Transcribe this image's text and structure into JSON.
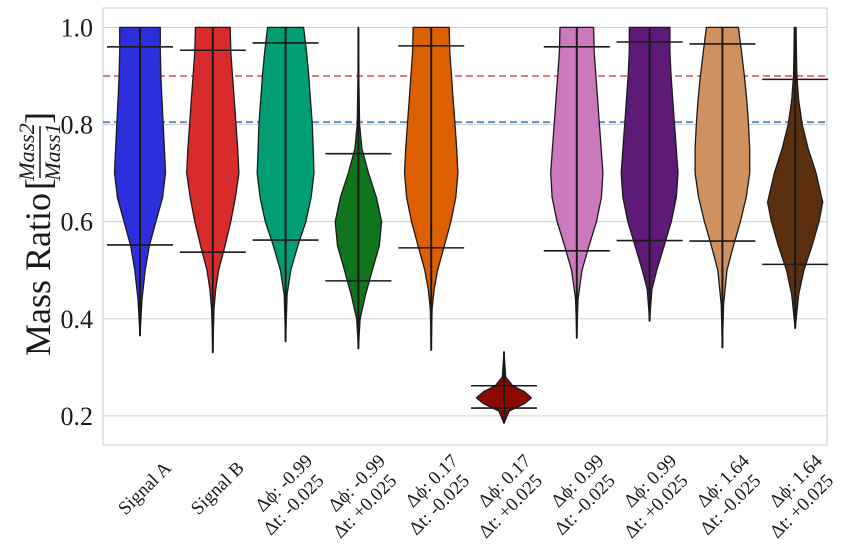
{
  "chart_data": {
    "type": "violin",
    "title": "",
    "xlabel": "",
    "ylabel": "Mass Ratio",
    "ylabel_fraction": {
      "numerator": "Mass2",
      "denominator": "Mass1"
    },
    "ylim": [
      0.14,
      1.04
    ],
    "yticks": [
      0.2,
      0.4,
      0.6,
      0.8,
      1.0
    ],
    "ytick_labels": [
      "0.2",
      "0.4",
      "0.6",
      "0.8",
      "1.0"
    ],
    "grid": true,
    "reference_lines": [
      {
        "value": 0.9,
        "color": "#e8787e",
        "style": "dashed"
      },
      {
        "value": 0.805,
        "color": "#5b8fd0",
        "style": "dashed"
      }
    ],
    "categories": [
      {
        "label1": "Signal A",
        "label2": ""
      },
      {
        "label1": "Signal B",
        "label2": ""
      },
      {
        "label1": "Δϕ: -0.99",
        "label2": "Δt: -0.025"
      },
      {
        "label1": "Δϕ: -0.99",
        "label2": "Δt: +0.025"
      },
      {
        "label1": "Δϕ: 0.17",
        "label2": "Δt: -0.025"
      },
      {
        "label1": "Δϕ: 0.17",
        "label2": "Δt: +0.025"
      },
      {
        "label1": "Δϕ: 0.99",
        "label2": "Δt: -0.025"
      },
      {
        "label1": "Δϕ: 0.99",
        "label2": "Δt: +0.025"
      },
      {
        "label1": "Δϕ: 1.64",
        "label2": "Δt: -0.025"
      },
      {
        "label1": "Δϕ: 1.64",
        "label2": "Δt: +0.025"
      }
    ],
    "series": [
      {
        "name": "Signal A",
        "color": "#2e2fdc",
        "min": 0.365,
        "max": 1.0,
        "p05": 0.552,
        "p95": 0.96,
        "profile": [
          [
            0.365,
            0.0
          ],
          [
            0.44,
            0.07
          ],
          [
            0.5,
            0.18
          ],
          [
            0.55,
            0.32
          ],
          [
            0.6,
            0.55
          ],
          [
            0.65,
            0.78
          ],
          [
            0.7,
            0.88
          ],
          [
            0.75,
            0.84
          ],
          [
            0.8,
            0.8
          ],
          [
            0.85,
            0.76
          ],
          [
            0.9,
            0.72
          ],
          [
            0.95,
            0.7
          ],
          [
            1.0,
            0.7
          ]
        ]
      },
      {
        "name": "Signal B",
        "color": "#d72b2c",
        "min": 0.33,
        "max": 1.0,
        "p05": 0.537,
        "p95": 0.953,
        "profile": [
          [
            0.33,
            0.0
          ],
          [
            0.42,
            0.04
          ],
          [
            0.46,
            0.1
          ],
          [
            0.5,
            0.2
          ],
          [
            0.55,
            0.42
          ],
          [
            0.6,
            0.62
          ],
          [
            0.65,
            0.78
          ],
          [
            0.7,
            0.9
          ],
          [
            0.75,
            0.86
          ],
          [
            0.8,
            0.8
          ],
          [
            0.85,
            0.74
          ],
          [
            0.9,
            0.68
          ],
          [
            0.95,
            0.62
          ],
          [
            1.0,
            0.6
          ]
        ]
      },
      {
        "name": "Δϕ: -0.99 Δt: -0.025",
        "color": "#029e73",
        "min": 0.353,
        "max": 1.0,
        "p05": 0.562,
        "p95": 0.968,
        "profile": [
          [
            0.353,
            0.0
          ],
          [
            0.45,
            0.05
          ],
          [
            0.5,
            0.18
          ],
          [
            0.55,
            0.42
          ],
          [
            0.6,
            0.7
          ],
          [
            0.65,
            0.88
          ],
          [
            0.7,
            0.98
          ],
          [
            0.75,
            0.95
          ],
          [
            0.8,
            0.92
          ],
          [
            0.85,
            0.86
          ],
          [
            0.9,
            0.8
          ],
          [
            0.95,
            0.72
          ],
          [
            1.0,
            0.62
          ]
        ]
      },
      {
        "name": "Δϕ: -0.99 Δt: +0.025",
        "color": "#10761e",
        "min": 0.338,
        "max": 1.0,
        "p05": 0.478,
        "p95": 0.74,
        "profile": [
          [
            0.338,
            0.0
          ],
          [
            0.4,
            0.06
          ],
          [
            0.45,
            0.25
          ],
          [
            0.5,
            0.48
          ],
          [
            0.55,
            0.72
          ],
          [
            0.6,
            0.8
          ],
          [
            0.65,
            0.62
          ],
          [
            0.7,
            0.35
          ],
          [
            0.75,
            0.12
          ],
          [
            0.8,
            0.04
          ],
          [
            0.9,
            0.015
          ],
          [
            1.0,
            0.0
          ]
        ]
      },
      {
        "name": "Δϕ: 0.17 Δt: -0.025",
        "color": "#de5f00",
        "min": 0.335,
        "max": 1.0,
        "p05": 0.546,
        "p95": 0.962,
        "profile": [
          [
            0.335,
            0.0
          ],
          [
            0.42,
            0.03
          ],
          [
            0.46,
            0.1
          ],
          [
            0.5,
            0.22
          ],
          [
            0.55,
            0.45
          ],
          [
            0.6,
            0.68
          ],
          [
            0.65,
            0.85
          ],
          [
            0.7,
            0.92
          ],
          [
            0.75,
            0.88
          ],
          [
            0.8,
            0.82
          ],
          [
            0.85,
            0.76
          ],
          [
            0.9,
            0.7
          ],
          [
            0.95,
            0.64
          ],
          [
            1.0,
            0.62
          ]
        ]
      },
      {
        "name": "Δϕ: 0.17 Δt: +0.025",
        "color": "#8c0a00",
        "min": 0.185,
        "max": 0.332,
        "p05": 0.216,
        "p95": 0.262,
        "profile": [
          [
            0.185,
            0.0
          ],
          [
            0.21,
            0.18
          ],
          [
            0.225,
            0.7
          ],
          [
            0.237,
            0.95
          ],
          [
            0.25,
            0.7
          ],
          [
            0.262,
            0.3
          ],
          [
            0.28,
            0.06
          ],
          [
            0.332,
            0.0
          ]
        ]
      },
      {
        "name": "Δϕ: 0.99 Δt: -0.025",
        "color": "#cc78bc",
        "min": 0.36,
        "max": 1.0,
        "p05": 0.54,
        "p95": 0.96,
        "profile": [
          [
            0.36,
            0.0
          ],
          [
            0.44,
            0.04
          ],
          [
            0.5,
            0.18
          ],
          [
            0.55,
            0.42
          ],
          [
            0.6,
            0.68
          ],
          [
            0.65,
            0.85
          ],
          [
            0.7,
            0.9
          ],
          [
            0.75,
            0.84
          ],
          [
            0.8,
            0.78
          ],
          [
            0.85,
            0.72
          ],
          [
            0.9,
            0.66
          ],
          [
            0.95,
            0.6
          ],
          [
            1.0,
            0.58
          ]
        ]
      },
      {
        "name": "Δϕ: 0.99 Δt: +0.025",
        "color": "#5d1a76",
        "min": 0.395,
        "max": 1.0,
        "p05": 0.561,
        "p95": 0.97,
        "profile": [
          [
            0.395,
            0.0
          ],
          [
            0.46,
            0.08
          ],
          [
            0.5,
            0.25
          ],
          [
            0.55,
            0.5
          ],
          [
            0.6,
            0.75
          ],
          [
            0.65,
            0.92
          ],
          [
            0.7,
            0.98
          ],
          [
            0.75,
            0.92
          ],
          [
            0.8,
            0.86
          ],
          [
            0.85,
            0.8
          ],
          [
            0.9,
            0.74
          ],
          [
            0.95,
            0.7
          ],
          [
            1.0,
            0.7
          ]
        ]
      },
      {
        "name": "Δϕ: 1.64 Δt: -0.025",
        "color": "#cf9160",
        "min": 0.34,
        "max": 1.0,
        "p05": 0.56,
        "p95": 0.966,
        "profile": [
          [
            0.34,
            0.0
          ],
          [
            0.43,
            0.04
          ],
          [
            0.5,
            0.16
          ],
          [
            0.55,
            0.38
          ],
          [
            0.6,
            0.62
          ],
          [
            0.65,
            0.82
          ],
          [
            0.7,
            0.94
          ],
          [
            0.75,
            0.94
          ],
          [
            0.8,
            0.9
          ],
          [
            0.85,
            0.84
          ],
          [
            0.9,
            0.76
          ],
          [
            0.95,
            0.66
          ],
          [
            1.0,
            0.55
          ]
        ]
      },
      {
        "name": "Δϕ: 1.64 Δt: +0.025",
        "color": "#5c300e",
        "min": 0.38,
        "max": 1.0,
        "p05": 0.512,
        "p95": 0.893,
        "profile": [
          [
            0.38,
            0.0
          ],
          [
            0.45,
            0.12
          ],
          [
            0.5,
            0.3
          ],
          [
            0.55,
            0.58
          ],
          [
            0.6,
            0.82
          ],
          [
            0.64,
            0.95
          ],
          [
            0.7,
            0.72
          ],
          [
            0.75,
            0.45
          ],
          [
            0.8,
            0.24
          ],
          [
            0.85,
            0.12
          ],
          [
            0.9,
            0.06
          ],
          [
            0.95,
            0.04
          ],
          [
            1.0,
            0.03
          ]
        ]
      }
    ]
  }
}
